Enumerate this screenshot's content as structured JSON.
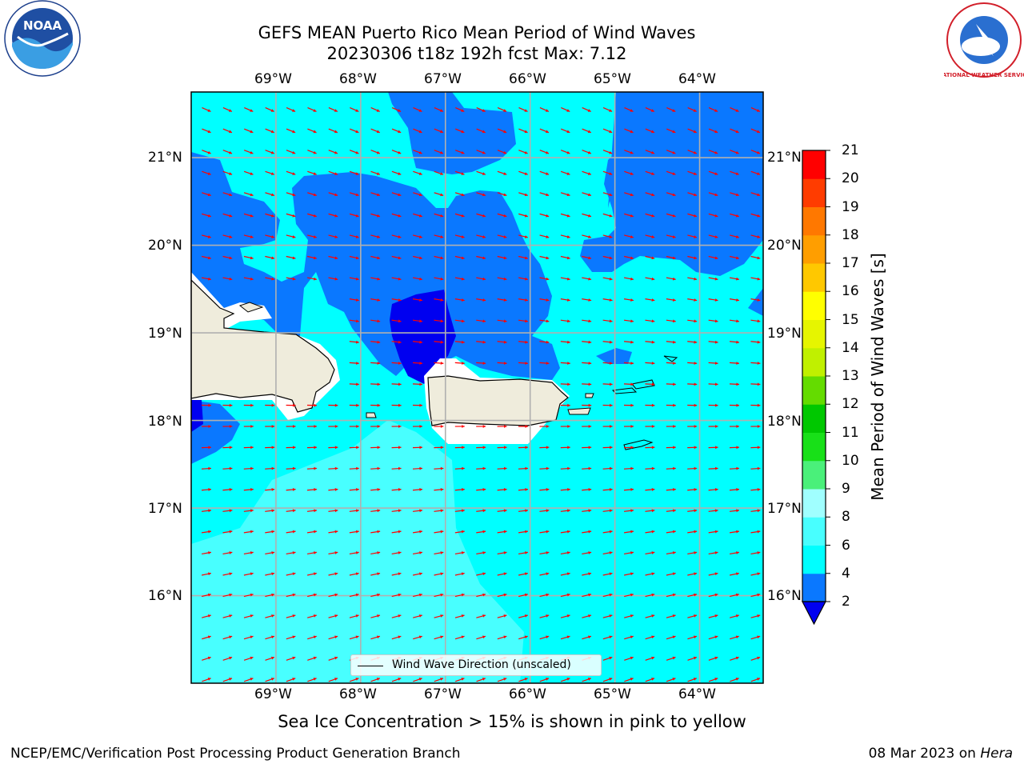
{
  "title": {
    "line1": "GEFS MEAN Puerto Rico Mean Period of Wind Waves",
    "line2": "20230306 t18z 192h fcst   Max: 7.12"
  },
  "axes": {
    "lon_labels": [
      "69°W",
      "68°W",
      "67°W",
      "66°W",
      "65°W",
      "64°W"
    ],
    "lat_labels": [
      "21°N",
      "20°N",
      "19°N",
      "18°N",
      "17°N",
      "16°N"
    ]
  },
  "colorbar": {
    "title": "Mean Period of Wind Waves [s]",
    "ticks": [
      "2",
      "4",
      "6",
      "8",
      "9",
      "10",
      "11",
      "12",
      "13",
      "14",
      "15",
      "16",
      "17",
      "18",
      "19",
      "20",
      "21"
    ],
    "colors": [
      "#0000f0",
      "#0a78ff",
      "#00ffff",
      "#48ffff",
      "#a0ffff",
      "#4af07a",
      "#18e018",
      "#00c800",
      "#64dc00",
      "#c0f000",
      "#e6f500",
      "#ffff00",
      "#ffc800",
      "#ff9e00",
      "#ff7800",
      "#ff3c00",
      "#ff0000"
    ]
  },
  "legend": {
    "label": "Wind Wave Direction (unscaled)"
  },
  "note": "Sea Ice Concentration > 15% is shown in pink to yellow",
  "footer": {
    "left": "NCEP/EMC/Verification Post Processing Product Generation Branch",
    "right_date": "08 Mar 2023 on",
    "right_host": "Hera"
  },
  "logos": {
    "noaa": "NOAA",
    "nws": "NATIONAL WEATHER SERVICE"
  },
  "map_data": {
    "lon_range": [
      -70.0,
      -63.25
    ],
    "lat_range": [
      15.0,
      21.75
    ],
    "arrow_color": "#ff0000",
    "land_color": "#efecdc"
  }
}
